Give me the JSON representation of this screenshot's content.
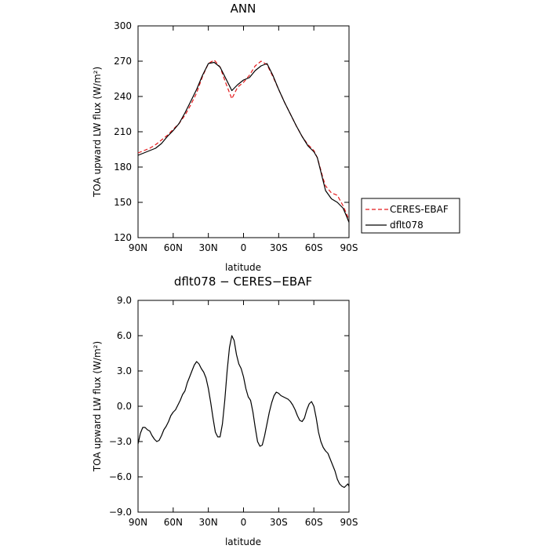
{
  "chart_data": [
    {
      "type": "line",
      "title": "ANN",
      "xlabel": "latitude",
      "ylabel": "TOA upward LW flux (W/m²)",
      "xlim": [
        90,
        -90
      ],
      "ylim": [
        120,
        300
      ],
      "xticks": [
        {
          "value": 90,
          "label": "90N"
        },
        {
          "value": 60,
          "label": "60N"
        },
        {
          "value": 30,
          "label": "30N"
        },
        {
          "value": 0,
          "label": "0"
        },
        {
          "value": -30,
          "label": "30S"
        },
        {
          "value": -60,
          "label": "60S"
        },
        {
          "value": -90,
          "label": "90S"
        }
      ],
      "yticks": [
        {
          "value": 120,
          "label": "120"
        },
        {
          "value": 150,
          "label": "150"
        },
        {
          "value": 180,
          "label": "180"
        },
        {
          "value": 210,
          "label": "210"
        },
        {
          "value": 240,
          "label": "240"
        },
        {
          "value": 270,
          "label": "270"
        },
        {
          "value": 300,
          "label": "300"
        }
      ],
      "legend_position": "right",
      "series": [
        {
          "name": "CERES-EBAF",
          "color": "#e41a1c",
          "dash": true,
          "x": [
            90,
            85,
            80,
            75,
            70,
            65,
            60,
            55,
            50,
            45,
            40,
            35,
            30,
            25,
            20,
            15,
            10,
            5,
            0,
            -5,
            -10,
            -15,
            -20,
            -25,
            -30,
            -35,
            -40,
            -45,
            -50,
            -55,
            -60,
            -63,
            -65,
            -68,
            -70,
            -75,
            -80,
            -85,
            -88,
            -90
          ],
          "y": [
            192,
            194,
            196,
            199,
            203,
            207,
            212,
            217,
            224,
            233,
            243,
            257,
            268,
            271,
            265,
            251,
            238,
            248,
            252,
            258,
            266,
            270,
            267,
            257,
            246,
            235,
            225,
            215,
            206,
            199,
            194,
            188,
            181,
            170,
            164,
            158,
            156,
            147,
            140,
            135
          ]
        },
        {
          "name": "dflt078",
          "color": "#000000",
          "dash": false,
          "x": [
            90,
            85,
            80,
            75,
            70,
            65,
            60,
            55,
            50,
            45,
            40,
            35,
            30,
            25,
            20,
            15,
            10,
            5,
            0,
            -5,
            -10,
            -15,
            -20,
            -25,
            -30,
            -35,
            -40,
            -45,
            -50,
            -55,
            -60,
            -63,
            -65,
            -68,
            -70,
            -75,
            -80,
            -85,
            -88,
            -90
          ],
          "y": [
            190,
            192,
            194,
            196,
            200,
            206,
            211,
            217,
            226,
            236,
            246,
            258,
            268,
            269,
            265,
            255,
            245,
            250,
            254,
            256,
            262,
            266,
            268,
            258,
            246,
            235,
            225,
            215,
            206,
            198,
            193,
            188,
            180,
            168,
            160,
            153,
            150,
            145,
            138,
            133
          ]
        }
      ]
    },
    {
      "type": "line",
      "title": "dflt078 − CERES−EBAF",
      "xlabel": "latitude",
      "ylabel": "TOA upward LW flux (W/m²)",
      "xlim": [
        90,
        -90
      ],
      "ylim": [
        -9,
        9
      ],
      "xticks": [
        {
          "value": 90,
          "label": "90N"
        },
        {
          "value": 60,
          "label": "60N"
        },
        {
          "value": 30,
          "label": "30N"
        },
        {
          "value": 0,
          "label": "0"
        },
        {
          "value": -30,
          "label": "30S"
        },
        {
          "value": -60,
          "label": "60S"
        },
        {
          "value": -90,
          "label": "90S"
        }
      ],
      "yticks": [
        {
          "value": -9,
          "label": "−9.0"
        },
        {
          "value": -6,
          "label": "−6.0"
        },
        {
          "value": -3,
          "label": "−3.0"
        },
        {
          "value": 0,
          "label": "0.0"
        },
        {
          "value": 3,
          "label": "3.0"
        },
        {
          "value": 6,
          "label": "6.0"
        },
        {
          "value": 9,
          "label": "9.0"
        }
      ],
      "series": [
        {
          "color": "#000000",
          "dash": false,
          "x": [
            90,
            88,
            86,
            84,
            82,
            80,
            78,
            76,
            74,
            72,
            70,
            68,
            66,
            64,
            62,
            60,
            58,
            56,
            54,
            52,
            50,
            48,
            46,
            44,
            42,
            40,
            38,
            36,
            34,
            32,
            30,
            28,
            26,
            24,
            22,
            20,
            18,
            16,
            14,
            12,
            10,
            8,
            6,
            4,
            2,
            0,
            -2,
            -4,
            -6,
            -8,
            -10,
            -12,
            -14,
            -16,
            -18,
            -20,
            -22,
            -24,
            -26,
            -28,
            -30,
            -32,
            -34,
            -36,
            -38,
            -40,
            -42,
            -44,
            -46,
            -48,
            -50,
            -52,
            -54,
            -56,
            -58,
            -60,
            -62,
            -64,
            -66,
            -68,
            -70,
            -72,
            -74,
            -76,
            -78,
            -80,
            -82,
            -84,
            -86,
            -88,
            -89,
            -90
          ],
          "y": [
            -3.2,
            -2.3,
            -1.8,
            -1.8,
            -2.0,
            -2.1,
            -2.5,
            -2.8,
            -3.0,
            -2.9,
            -2.5,
            -2.0,
            -1.7,
            -1.3,
            -0.8,
            -0.5,
            -0.3,
            0.1,
            0.5,
            1.0,
            1.3,
            2.0,
            2.5,
            3.0,
            3.5,
            3.8,
            3.6,
            3.2,
            2.9,
            2.4,
            1.5,
            0.3,
            -1.0,
            -2.2,
            -2.6,
            -2.6,
            -1.5,
            0.5,
            3.0,
            5.0,
            6.0,
            5.6,
            4.4,
            3.6,
            3.2,
            2.5,
            1.5,
            0.8,
            0.5,
            -0.5,
            -1.8,
            -3.0,
            -3.4,
            -3.3,
            -2.5,
            -1.5,
            -0.5,
            0.3,
            0.9,
            1.2,
            1.1,
            0.9,
            0.8,
            0.7,
            0.6,
            0.4,
            0.1,
            -0.3,
            -0.8,
            -1.2,
            -1.3,
            -1.0,
            -0.3,
            0.2,
            0.4,
            0.0,
            -1.0,
            -2.2,
            -3.0,
            -3.5,
            -3.8,
            -4.0,
            -4.5,
            -5.0,
            -5.5,
            -6.2,
            -6.6,
            -6.8,
            -6.9,
            -6.7,
            -6.6,
            -6.8
          ]
        }
      ]
    }
  ]
}
